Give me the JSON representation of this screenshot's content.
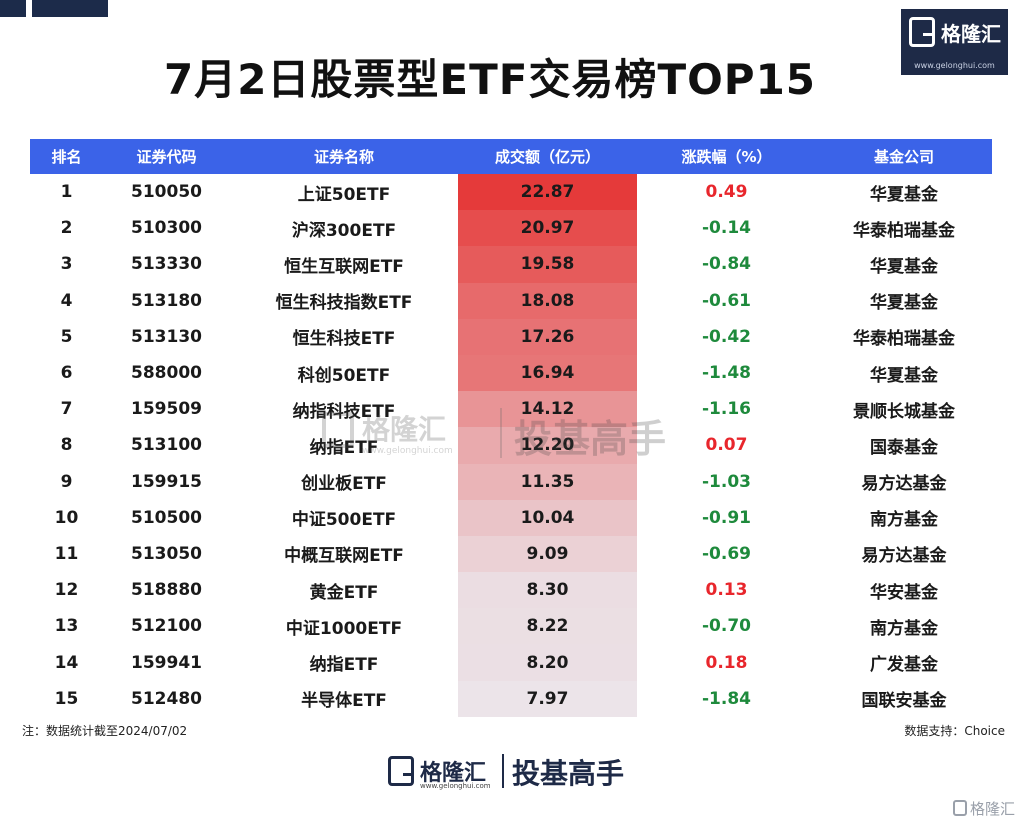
{
  "title": "7月2日股票型ETF交易榜TOP15",
  "logo": {
    "name": "格隆汇",
    "url": "www.gelonghui.com"
  },
  "watermark": {
    "brand": "格隆汇",
    "url": "www.gelonghui.com",
    "slogan": "投基高手"
  },
  "note": "注：数据统计截至2024/07/02",
  "source": "数据支持：Choice",
  "colors": {
    "header": "#3b63e8",
    "up": "#e8262c",
    "down": "#1e8a3c",
    "bar_max": "#e53a3a",
    "bar_min": "#eceff4"
  },
  "chart_data": {
    "type": "table",
    "columns": [
      "排名",
      "证券代码",
      "证券名称",
      "成交额（亿元）",
      "涨跌幅（%）",
      "基金公司"
    ],
    "rows": [
      [
        "1",
        "510050",
        "上证50ETF",
        "22.87",
        "0.49",
        "华夏基金"
      ],
      [
        "2",
        "510300",
        "沪深300ETF",
        "20.97",
        "-0.14",
        "华泰柏瑞基金"
      ],
      [
        "3",
        "513330",
        "恒生互联网ETF",
        "19.58",
        "-0.84",
        "华夏基金"
      ],
      [
        "4",
        "513180",
        "恒生科技指数ETF",
        "18.08",
        "-0.61",
        "华夏基金"
      ],
      [
        "5",
        "513130",
        "恒生科技ETF",
        "17.26",
        "-0.42",
        "华泰柏瑞基金"
      ],
      [
        "6",
        "588000",
        "科创50ETF",
        "16.94",
        "-1.48",
        "华夏基金"
      ],
      [
        "7",
        "159509",
        "纳指科技ETF",
        "14.12",
        "-1.16",
        "景顺长城基金"
      ],
      [
        "8",
        "513100",
        "纳指ETF",
        "12.20",
        "0.07",
        "国泰基金"
      ],
      [
        "9",
        "159915",
        "创业板ETF",
        "11.35",
        "-1.03",
        "易方达基金"
      ],
      [
        "10",
        "510500",
        "中证500ETF",
        "10.04",
        "-0.91",
        "南方基金"
      ],
      [
        "11",
        "513050",
        "中概互联网ETF",
        "9.09",
        "-0.69",
        "易方达基金"
      ],
      [
        "12",
        "518880",
        "黄金ETF",
        "8.30",
        "0.13",
        "华安基金"
      ],
      [
        "13",
        "512100",
        "中证1000ETF",
        "8.22",
        "-0.70",
        "南方基金"
      ],
      [
        "14",
        "159941",
        "纳指ETF",
        "8.20",
        "0.18",
        "广发基金"
      ],
      [
        "15",
        "512480",
        "半导体ETF",
        "7.97",
        "-1.84",
        "国联安基金"
      ]
    ]
  }
}
